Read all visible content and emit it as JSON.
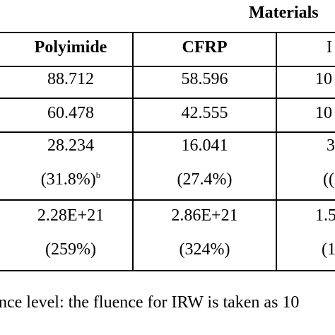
{
  "table": {
    "group_header": "Materials",
    "columns": [
      "Polyimide",
      "CFRP",
      "I"
    ],
    "rows": [
      {
        "cells": [
          {
            "line1": "88.712"
          },
          {
            "line1": "58.596"
          },
          {
            "line1": "10"
          }
        ]
      },
      {
        "cells": [
          {
            "line1": "60.478"
          },
          {
            "line1": "42.555"
          },
          {
            "line1": "10"
          }
        ]
      },
      {
        "cells": [
          {
            "line1": "28.234",
            "line2": "(31.8%)",
            "sup": "b"
          },
          {
            "line1": "16.041",
            "line2": "(27.4%)"
          },
          {
            "line1": "3",
            "line2": "(("
          }
        ]
      },
      {
        "cells": [
          {
            "line1": "2.28E+21",
            "line2": "(259%)"
          },
          {
            "line1": "2.86E+21",
            "line2": "(324%)"
          },
          {
            "line1": "1.5",
            "line2": "(1"
          }
        ]
      }
    ],
    "footnote": "nce level: the fluence for IRW is taken as 10"
  }
}
